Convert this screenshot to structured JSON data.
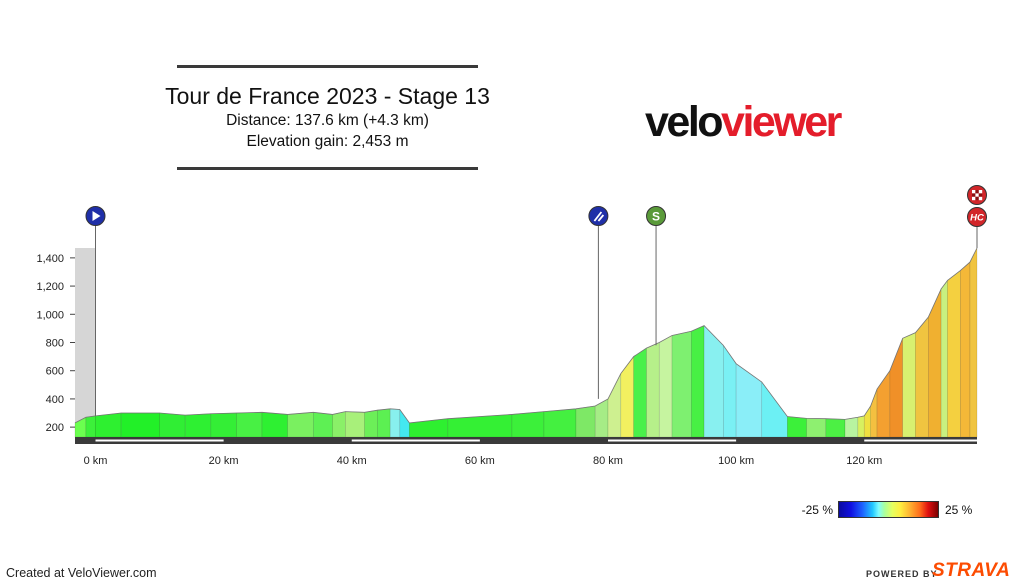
{
  "header": {
    "title": "Tour de France 2023 - Stage 13",
    "distance": "Distance: 137.6 km (+4.3 km)",
    "elevation": "Elevation gain: 2,453 m"
  },
  "logo": {
    "part1": "velo",
    "part2": "viewer"
  },
  "legend": {
    "min_label": "-25 %",
    "max_label": "25 %"
  },
  "footer": {
    "created": "Created at VeloViewer.com",
    "powered": "POWERED BY",
    "strava": "STRAVA"
  },
  "colors": {
    "strava": "#fc4c02",
    "logo_red": "#e41d2b",
    "start_marker": "#1f2fa8",
    "sprint_marker": "#5a9a3a",
    "climb_marker": "#d2262a"
  },
  "chart_data": {
    "type": "area",
    "title": "Tour de France 2023 - Stage 13",
    "xlabel": "",
    "ylabel": "",
    "xlim": [
      -3.2,
      137.6
    ],
    "ylim": [
      130,
      1470
    ],
    "x_ticks": [
      0,
      20,
      40,
      60,
      80,
      100,
      120
    ],
    "x_tick_labels": [
      "0 km",
      "20 km",
      "40 km",
      "60 km",
      "80 km",
      "100 km",
      "120 km"
    ],
    "y_ticks": [
      200,
      400,
      600,
      800,
      1000,
      1200,
      1400
    ],
    "y_tick_labels": [
      "200",
      "400",
      "600",
      "800",
      "1,000",
      "1,200",
      "1,400"
    ],
    "neutral_zone": {
      "from": -3.2,
      "to": 0,
      "elevation": 1470
    },
    "elevation_profile": [
      [
        -3.2,
        230
      ],
      [
        -1.5,
        270
      ],
      [
        0,
        280
      ],
      [
        4,
        300
      ],
      [
        10,
        300
      ],
      [
        14,
        285
      ],
      [
        18,
        295
      ],
      [
        22,
        300
      ],
      [
        26,
        305
      ],
      [
        30,
        290
      ],
      [
        34,
        305
      ],
      [
        37,
        290
      ],
      [
        39,
        310
      ],
      [
        42,
        305
      ],
      [
        44,
        320
      ],
      [
        46,
        330
      ],
      [
        47.5,
        325
      ],
      [
        49,
        230
      ],
      [
        55,
        260
      ],
      [
        65,
        290
      ],
      [
        70,
        310
      ],
      [
        75,
        330
      ],
      [
        78,
        350
      ],
      [
        80,
        400
      ],
      [
        82,
        580
      ],
      [
        84,
        700
      ],
      [
        86,
        760
      ],
      [
        88,
        800
      ],
      [
        90,
        850
      ],
      [
        93,
        880
      ],
      [
        95,
        920
      ],
      [
        98,
        780
      ],
      [
        100,
        650
      ],
      [
        104,
        520
      ],
      [
        108,
        275
      ],
      [
        111,
        262
      ],
      [
        114,
        260
      ],
      [
        117,
        255
      ],
      [
        119,
        270
      ],
      [
        120,
        280
      ],
      [
        121,
        350
      ],
      [
        122,
        470
      ],
      [
        124,
        600
      ],
      [
        126,
        830
      ],
      [
        128,
        870
      ],
      [
        130,
        980
      ],
      [
        132,
        1180
      ],
      [
        133,
        1240
      ],
      [
        135,
        1310
      ],
      [
        136.5,
        1370
      ],
      [
        137.6,
        1470
      ]
    ],
    "gradient_colors": [
      [
        -3.2,
        "#6bff4f"
      ],
      [
        -1.5,
        "#3cf03a"
      ],
      [
        0,
        "#2ef030"
      ],
      [
        4,
        "#22f028"
      ],
      [
        10,
        "#30ee34"
      ],
      [
        14,
        "#2ef032"
      ],
      [
        18,
        "#34ee36"
      ],
      [
        22,
        "#48f044"
      ],
      [
        26,
        "#2ef032"
      ],
      [
        30,
        "#7af060"
      ],
      [
        34,
        "#5ef054"
      ],
      [
        37,
        "#8af068"
      ],
      [
        39,
        "#a8f07a"
      ],
      [
        42,
        "#6cef58"
      ],
      [
        44,
        "#5cf052"
      ],
      [
        46,
        "#88f0ee"
      ],
      [
        47.5,
        "#44e8f0"
      ],
      [
        49,
        "#2ef030"
      ],
      [
        55,
        "#34f034"
      ],
      [
        65,
        "#3cf03a"
      ],
      [
        70,
        "#44f040"
      ],
      [
        75,
        "#7ee866"
      ],
      [
        78,
        "#a6ec86"
      ],
      [
        80,
        "#cef090"
      ],
      [
        82,
        "#f2f060"
      ],
      [
        84,
        "#4af04a"
      ],
      [
        86,
        "#b6f08a"
      ],
      [
        88,
        "#c6f4a0"
      ],
      [
        90,
        "#7ef070"
      ],
      [
        93,
        "#48f044"
      ],
      [
        95,
        "#88f0f0"
      ],
      [
        98,
        "#7af0f4"
      ],
      [
        100,
        "#8aeef8"
      ],
      [
        104,
        "#6cf0f4"
      ],
      [
        108,
        "#3cf03a"
      ],
      [
        111,
        "#8ef070"
      ],
      [
        114,
        "#4cf044"
      ],
      [
        117,
        "#b8f4a0"
      ],
      [
        119,
        "#d8f060"
      ],
      [
        120,
        "#f0e040"
      ],
      [
        121,
        "#f4c040"
      ],
      [
        122,
        "#f4a030"
      ],
      [
        124,
        "#f09028"
      ],
      [
        126,
        "#d8f070"
      ],
      [
        128,
        "#f0c440"
      ],
      [
        130,
        "#f0b030"
      ],
      [
        132,
        "#c8f080"
      ],
      [
        133,
        "#f4d040"
      ],
      [
        135,
        "#f4b838"
      ],
      [
        136.5,
        "#f0c440"
      ]
    ],
    "distance_bands": [
      [
        0,
        20
      ],
      [
        40,
        60
      ],
      [
        80,
        100
      ],
      [
        120,
        137.6
      ]
    ],
    "markers": [
      {
        "type": "start",
        "km": 0,
        "icon": "play-icon",
        "color": "#1f2fa8"
      },
      {
        "type": "feed",
        "km": 78.5,
        "icon": "feed-zone-icon",
        "color": "#1f2fa8"
      },
      {
        "type": "sprint",
        "km": 87.5,
        "label": "S",
        "icon": "sprint-icon",
        "color": "#5a9a3a"
      },
      {
        "type": "climb",
        "km": 137.6,
        "label": "HC",
        "icon": "hc-climb-icon",
        "color": "#d2262a"
      },
      {
        "type": "finish",
        "km": 137.6,
        "icon": "finish-flag-icon",
        "color": "#d2262a"
      }
    ]
  }
}
